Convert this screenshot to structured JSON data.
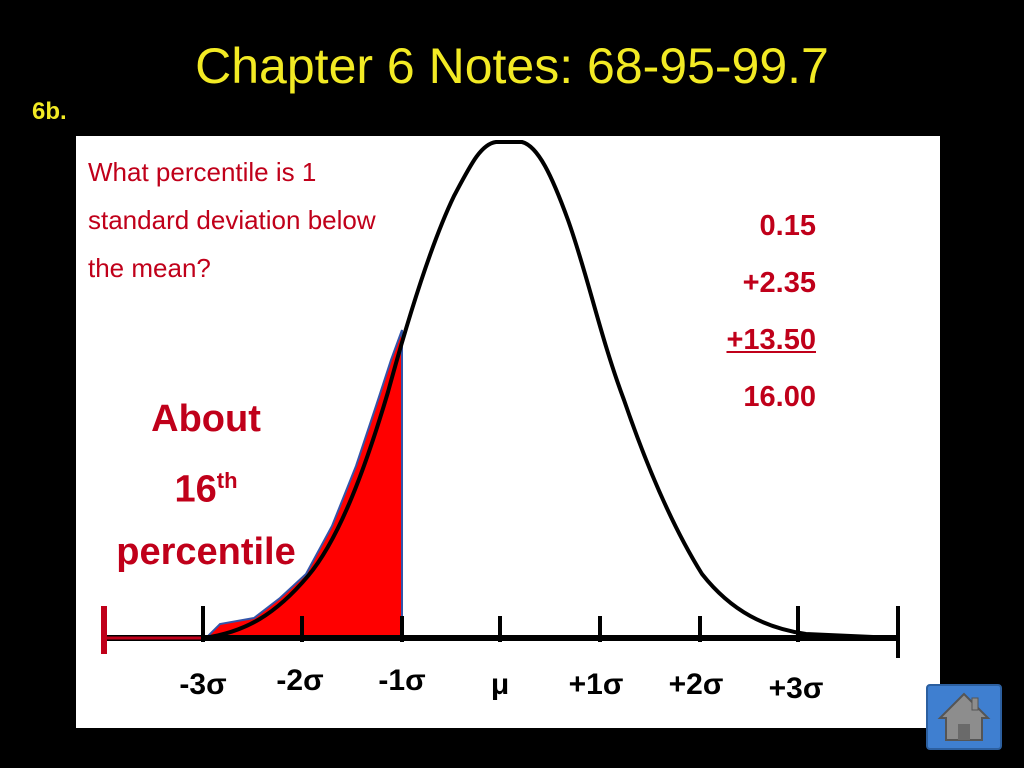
{
  "title": "Chapter 6 Notes: 68-95-99.7",
  "subtag": "6b.",
  "question": "What percentile is 1 standard deviation below the mean?",
  "calc": {
    "line1": "0.15",
    "line2": "+2.35",
    "line3": "+13.50",
    "total": "16.00"
  },
  "answer": {
    "about": "About",
    "num": "16",
    "sup": "th",
    "word": "percentile"
  },
  "axis_labels": [
    "-3σ",
    "-2σ",
    "-1σ",
    "μ",
    "+1σ",
    "+2σ",
    "+3σ"
  ],
  "colors": {
    "title": "#f2ea24",
    "accent": "#c0001a",
    "shade": "#ff0000",
    "home": "#3f7fd0"
  },
  "icons": {
    "home": "home-icon"
  }
}
